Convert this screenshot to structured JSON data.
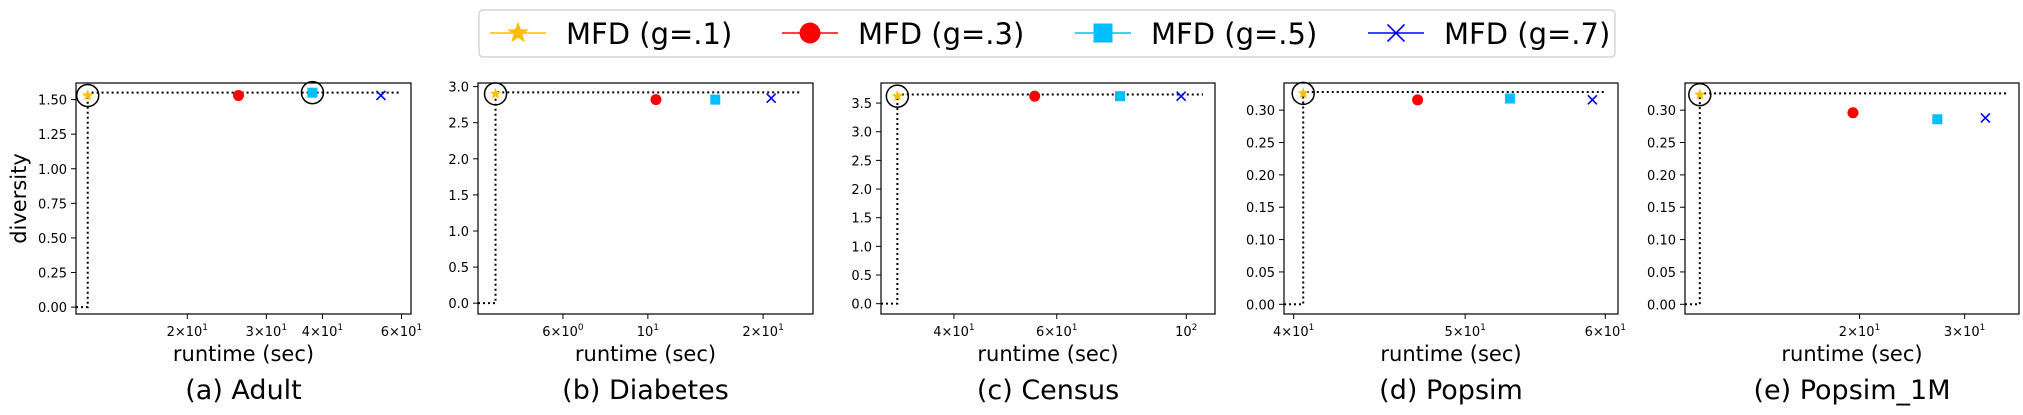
{
  "legend": {
    "entries": [
      {
        "label": "MFD (g=.1)",
        "color": "#ffbf00",
        "marker": "star"
      },
      {
        "label": "MFD (g=.3)",
        "color": "#ff0000",
        "marker": "circle"
      },
      {
        "label": "MFD (g=.5)",
        "color": "#00bfff",
        "marker": "square"
      },
      {
        "label": "MFD (g=.7)",
        "color": "#0000ff",
        "marker": "x"
      }
    ]
  },
  "chart_data": [
    {
      "type": "scatter",
      "caption": "(a) Adult",
      "xlabel": "runtime (sec)",
      "ylabel": "diversity",
      "xscale": "log",
      "xlim": [
        11.3,
        63
      ],
      "xticks": [
        {
          "v": 20,
          "base": "2×10",
          "exp": "1"
        },
        {
          "v": 30,
          "base": "3×10",
          "exp": "1"
        },
        {
          "v": 40,
          "base": "4×10",
          "exp": "1"
        },
        {
          "v": 60,
          "base": "6×10",
          "exp": "1"
        }
      ],
      "ylim": [
        -0.05,
        1.62
      ],
      "yticks": [
        "0.00",
        "0.25",
        "0.50",
        "0.75",
        "1.00",
        "1.25",
        "1.50"
      ],
      "ytick_values": [
        0,
        0.25,
        0.5,
        0.75,
        1.0,
        1.25,
        1.5
      ],
      "series": [
        {
          "name": "MFD (g=.1)",
          "x": 12.0,
          "y": 1.53
        },
        {
          "name": "MFD (g=.3)",
          "x": 26.0,
          "y": 1.53
        },
        {
          "name": "MFD (g=.5)",
          "x": 38.0,
          "y": 1.55
        },
        {
          "name": "MFD (g=.7)",
          "x": 54.0,
          "y": 1.53
        }
      ],
      "circled": [
        {
          "x": 12.0,
          "y": 1.53
        },
        {
          "x": 38.0,
          "y": 1.55
        }
      ],
      "frontier": {
        "x": 12.0,
        "y": 1.55
      }
    },
    {
      "type": "scatter",
      "caption": "(b) Diabetes",
      "xlabel": "runtime (sec)",
      "ylabel": "",
      "xscale": "log",
      "xlim": [
        3.6,
        27
      ],
      "xticks": [
        {
          "v": 6,
          "base": "6×10",
          "exp": "0"
        },
        {
          "v": 10,
          "base": "10",
          "exp": "1"
        },
        {
          "v": 20,
          "base": "2×10",
          "exp": "1"
        }
      ],
      "ylim": [
        -0.15,
        3.05
      ],
      "yticks": [
        "0.0",
        "0.5",
        "1.0",
        "1.5",
        "2.0",
        "2.5",
        "3.0"
      ],
      "ytick_values": [
        0,
        0.5,
        1.0,
        1.5,
        2.0,
        2.5,
        3.0
      ],
      "series": [
        {
          "name": "MFD (g=.1)",
          "x": 4.0,
          "y": 2.9
        },
        {
          "name": "MFD (g=.3)",
          "x": 10.5,
          "y": 2.82
        },
        {
          "name": "MFD (g=.5)",
          "x": 15.0,
          "y": 2.82
        },
        {
          "name": "MFD (g=.7)",
          "x": 21.0,
          "y": 2.84
        }
      ],
      "circled": [
        {
          "x": 4.0,
          "y": 2.9
        }
      ],
      "frontier": {
        "x": 4.0,
        "y": 2.92
      }
    },
    {
      "type": "scatter",
      "caption": "(c) Census",
      "xlabel": "runtime (sec)",
      "ylabel": "",
      "xscale": "log",
      "xlim": [
        30,
        112
      ],
      "xticks": [
        {
          "v": 40,
          "base": "4×10",
          "exp": "1"
        },
        {
          "v": 60,
          "base": "6×10",
          "exp": "1"
        },
        {
          "v": 100,
          "base": "10",
          "exp": "2"
        }
      ],
      "ylim": [
        -0.18,
        3.85
      ],
      "yticks": [
        "0.0",
        "0.5",
        "1.0",
        "1.5",
        "2.0",
        "2.5",
        "3.0",
        "3.5"
      ],
      "ytick_values": [
        0,
        0.5,
        1.0,
        1.5,
        2.0,
        2.5,
        3.0,
        3.5
      ],
      "series": [
        {
          "name": "MFD (g=.1)",
          "x": 32.0,
          "y": 3.62
        },
        {
          "name": "MFD (g=.3)",
          "x": 55.0,
          "y": 3.62
        },
        {
          "name": "MFD (g=.5)",
          "x": 77.0,
          "y": 3.62
        },
        {
          "name": "MFD (g=.7)",
          "x": 98.0,
          "y": 3.62
        }
      ],
      "circled": [
        {
          "x": 32.0,
          "y": 3.62
        }
      ],
      "frontier": {
        "x": 32.0,
        "y": 3.65
      }
    },
    {
      "type": "scatter",
      "caption": "(d) Popsim",
      "xlabel": "runtime (sec)",
      "ylabel": "",
      "xscale": "log",
      "xlim": [
        39.5,
        61
      ],
      "xticks": [
        {
          "v": 40,
          "base": "4×10",
          "exp": "1"
        },
        {
          "v": 50,
          "base": "5×10",
          "exp": "1"
        },
        {
          "v": 60,
          "base": "6×10",
          "exp": "1"
        }
      ],
      "ylim": [
        -0.015,
        0.342
      ],
      "yticks": [
        "0.00",
        "0.05",
        "0.10",
        "0.15",
        "0.20",
        "0.25",
        "0.30"
      ],
      "ytick_values": [
        0,
        0.05,
        0.1,
        0.15,
        0.2,
        0.25,
        0.3
      ],
      "series": [
        {
          "name": "MFD (g=.1)",
          "x": 40.5,
          "y": 0.326
        },
        {
          "name": "MFD (g=.3)",
          "x": 47.0,
          "y": 0.316
        },
        {
          "name": "MFD (g=.5)",
          "x": 53.0,
          "y": 0.318
        },
        {
          "name": "MFD (g=.7)",
          "x": 59.0,
          "y": 0.316
        }
      ],
      "circled": [
        {
          "x": 40.5,
          "y": 0.326
        }
      ],
      "frontier": {
        "x": 40.5,
        "y": 0.328
      }
    },
    {
      "type": "scatter",
      "caption": "(e) Popsim_1M",
      "xlabel": "runtime (sec)",
      "ylabel": "",
      "xscale": "log",
      "xlim": [
        10.2,
        37
      ],
      "xticks": [
        {
          "v": 20,
          "base": "2×10",
          "exp": "1"
        },
        {
          "v": 30,
          "base": "3×10",
          "exp": "1"
        }
      ],
      "ylim": [
        -0.015,
        0.342
      ],
      "yticks": [
        "0.00",
        "0.05",
        "0.10",
        "0.15",
        "0.20",
        "0.25",
        "0.30"
      ],
      "ytick_values": [
        0,
        0.05,
        0.1,
        0.15,
        0.2,
        0.25,
        0.3
      ],
      "series": [
        {
          "name": "MFD (g=.1)",
          "x": 10.8,
          "y": 0.324
        },
        {
          "name": "MFD (g=.3)",
          "x": 19.5,
          "y": 0.296
        },
        {
          "name": "MFD (g=.5)",
          "x": 27.0,
          "y": 0.286
        },
        {
          "name": "MFD (g=.7)",
          "x": 32.5,
          "y": 0.288
        }
      ],
      "circled": [
        {
          "x": 10.8,
          "y": 0.324
        }
      ],
      "frontier": {
        "x": 10.8,
        "y": 0.326
      }
    }
  ]
}
